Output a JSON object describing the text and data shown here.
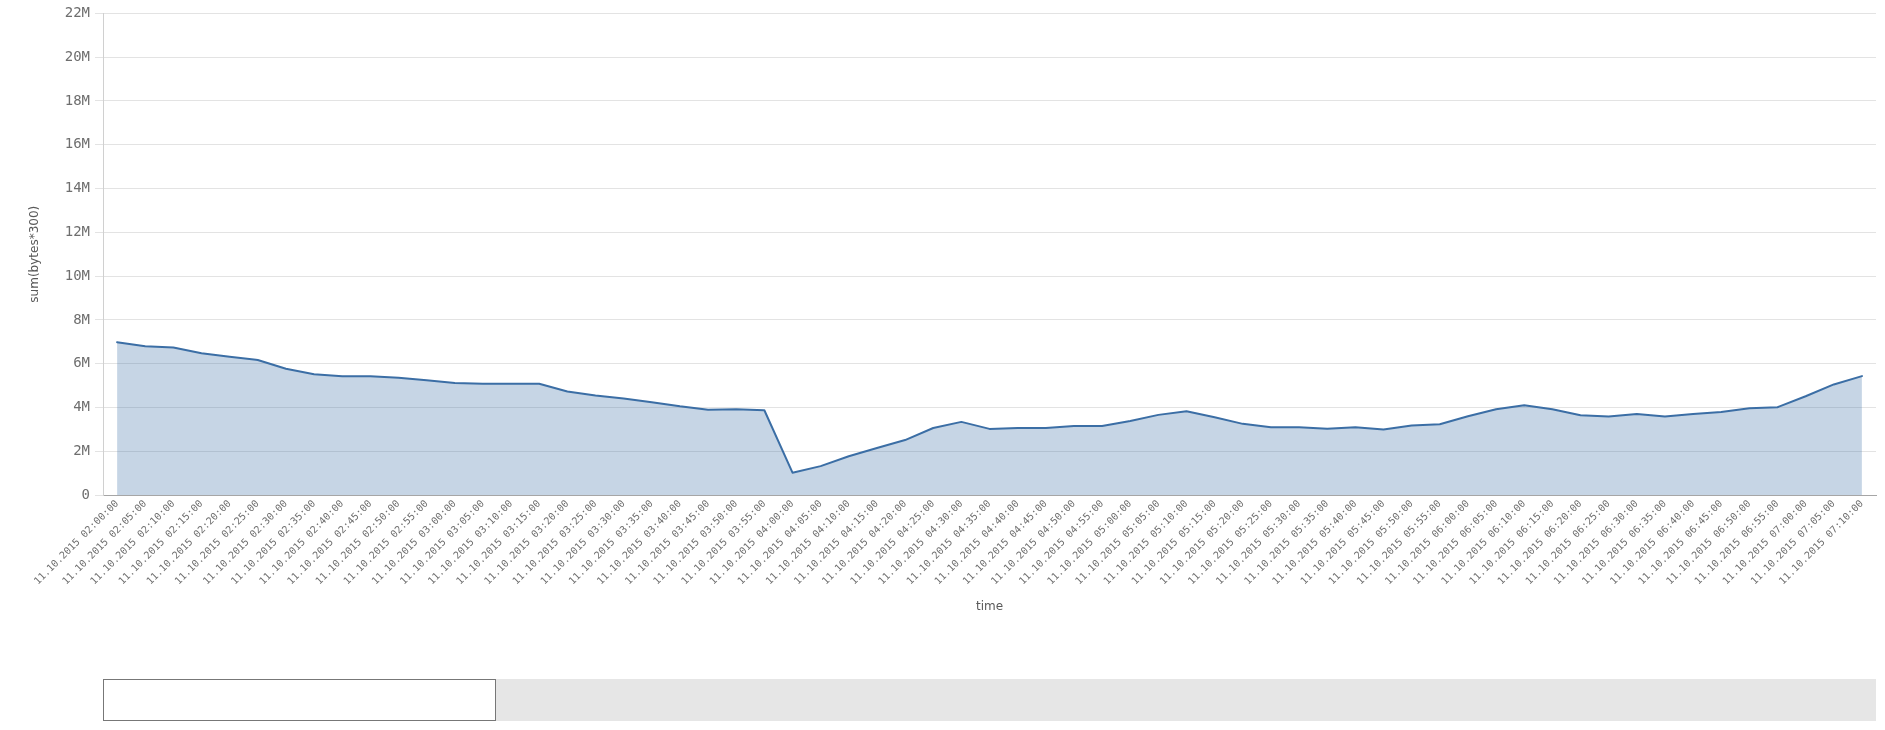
{
  "chart_data": {
    "type": "area",
    "xlabel": "time",
    "ylabel": "sum(bytes*300)",
    "categories": [
      "11.10.2015 02:00:00",
      "11.10.2015 02:05:00",
      "11.10.2015 02:10:00",
      "11.10.2015 02:15:00",
      "11.10.2015 02:20:00",
      "11.10.2015 02:25:00",
      "11.10.2015 02:30:00",
      "11.10.2015 02:35:00",
      "11.10.2015 02:40:00",
      "11.10.2015 02:45:00",
      "11.10.2015 02:50:00",
      "11.10.2015 02:55:00",
      "11.10.2015 03:00:00",
      "11.10.2015 03:05:00",
      "11.10.2015 03:10:00",
      "11.10.2015 03:15:00",
      "11.10.2015 03:20:00",
      "11.10.2015 03:25:00",
      "11.10.2015 03:30:00",
      "11.10.2015 03:35:00",
      "11.10.2015 03:40:00",
      "11.10.2015 03:45:00",
      "11.10.2015 03:50:00",
      "11.10.2015 03:55:00",
      "11.10.2015 04:00:00",
      "11.10.2015 04:05:00",
      "11.10.2015 04:10:00",
      "11.10.2015 04:15:00",
      "11.10.2015 04:20:00",
      "11.10.2015 04:25:00",
      "11.10.2015 04:30:00",
      "11.10.2015 04:35:00",
      "11.10.2015 04:40:00",
      "11.10.2015 04:45:00",
      "11.10.2015 04:50:00",
      "11.10.2015 04:55:00",
      "11.10.2015 05:00:00",
      "11.10.2015 05:05:00",
      "11.10.2015 05:10:00",
      "11.10.2015 05:15:00",
      "11.10.2015 05:20:00",
      "11.10.2015 05:25:00",
      "11.10.2015 05:30:00",
      "11.10.2015 05:35:00",
      "11.10.2015 05:40:00",
      "11.10.2015 05:45:00",
      "11.10.2015 05:50:00",
      "11.10.2015 05:55:00",
      "11.10.2015 06:00:00",
      "11.10.2015 06:05:00",
      "11.10.2015 06:10:00",
      "11.10.2015 06:15:00",
      "11.10.2015 06:20:00",
      "11.10.2015 06:25:00",
      "11.10.2015 06:30:00",
      "11.10.2015 06:35:00",
      "11.10.2015 06:40:00",
      "11.10.2015 06:45:00",
      "11.10.2015 06:50:00",
      "11.10.2015 06:55:00",
      "11.10.2015 07:00:00",
      "11.10.2015 07:05:00",
      "11.10.2015 07:10:00"
    ],
    "values": [
      6980000,
      6800000,
      6740000,
      6480000,
      6320000,
      6170000,
      5770000,
      5520000,
      5420000,
      5420000,
      5360000,
      5240000,
      5120000,
      5080000,
      5080000,
      5080000,
      4730000,
      4550000,
      4410000,
      4240000,
      4050000,
      3890000,
      3920000,
      3870000,
      1020000,
      1320000,
      1770000,
      2150000,
      2510000,
      3060000,
      3340000,
      3020000,
      3060000,
      3060000,
      3150000,
      3150000,
      3380000,
      3660000,
      3830000,
      3550000,
      3250000,
      3100000,
      3100000,
      3030000,
      3090000,
      2990000,
      3180000,
      3230000,
      3600000,
      3920000,
      4100000,
      3920000,
      3640000,
      3590000,
      3700000,
      3590000,
      3700000,
      3790000,
      3960000,
      4010000,
      4510000,
      5050000,
      5430000
    ],
    "color": "#3b6ea5",
    "ylim": [
      0,
      22000000
    ],
    "yticks": [
      0,
      {
        "value": 2000000,
        "label": "2M"
      },
      {
        "value": 4000000,
        "label": "4M"
      },
      {
        "value": 6000000,
        "label": "6M"
      },
      {
        "value": 8000000,
        "label": "8M"
      },
      {
        "value": 10000000,
        "label": "10M"
      },
      {
        "value": 12000000,
        "label": "12M"
      },
      {
        "value": 14000000,
        "label": "14M"
      },
      {
        "value": 16000000,
        "label": "16M"
      },
      {
        "value": 18000000,
        "label": "18M"
      },
      {
        "value": 20000000,
        "label": "20M"
      },
      {
        "value": 22000000,
        "label": "22M"
      }
    ],
    "grid": "y"
  }
}
